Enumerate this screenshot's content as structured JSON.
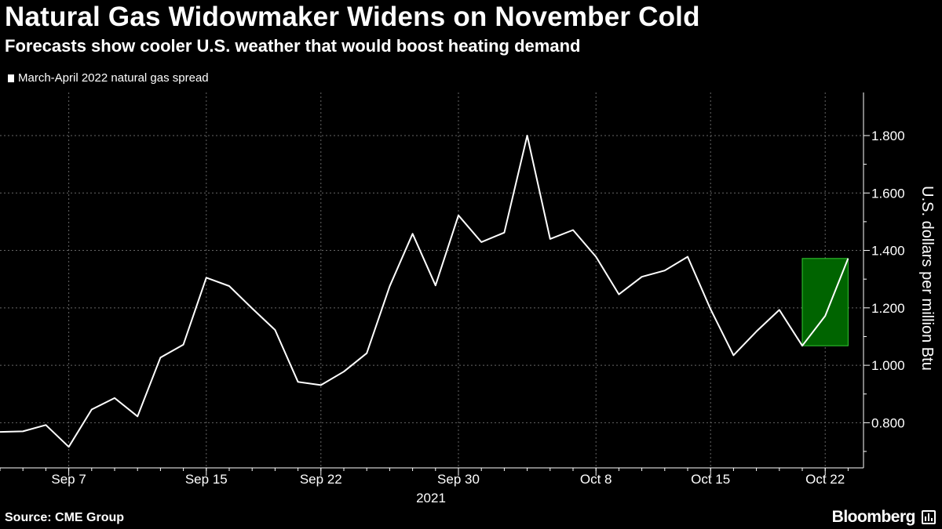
{
  "header": {
    "title": "Natural Gas Widowmaker Widens on November Cold",
    "subtitle": "Forecasts show cooler U.S. weather that would boost heating demand"
  },
  "footer": {
    "source": "Source: CME Group",
    "brand": "Bloomberg"
  },
  "colors": {
    "background": "#000000",
    "line": "#ffffff",
    "highlight_fill": "#006400",
    "highlight_stroke": "#33cc33",
    "grid": "#666666"
  },
  "chart_data": {
    "type": "line",
    "ylabel": "U.S. dollars per million Btu",
    "ylim": [
      0.64,
      1.9
    ],
    "y_ticks": [
      "0.800",
      "1.000",
      "1.200",
      "1.400",
      "1.600",
      "1.800"
    ],
    "y_tick_values": [
      0.8,
      1.0,
      1.2,
      1.4,
      1.6,
      1.8
    ],
    "x_tick_labels": [
      "Sep 7",
      "Sep 15",
      "Sep 22",
      "Sep 30",
      "Oct 8",
      "Oct 15",
      "Oct 22"
    ],
    "year_label": "2021",
    "grid": true,
    "legend_position": "top-left",
    "highlight": {
      "from_index": 35,
      "to_index": 37,
      "description_color": "green"
    },
    "series": [
      {
        "name": "March-April 2022 natural gas spread",
        "x": [
          "Sep 1",
          "Sep 2",
          "Sep 3",
          "Sep 7",
          "Sep 8",
          "Sep 9",
          "Sep 10",
          "Sep 13",
          "Sep 14",
          "Sep 15",
          "Sep 16",
          "Sep 17",
          "Sep 20",
          "Sep 21",
          "Sep 22",
          "Sep 23",
          "Sep 24",
          "Sep 27",
          "Sep 28",
          "Sep 29",
          "Sep 30",
          "Oct 1",
          "Oct 4",
          "Oct 5",
          "Oct 6",
          "Oct 7",
          "Oct 8",
          "Oct 11",
          "Oct 12",
          "Oct 13",
          "Oct 14",
          "Oct 15",
          "Oct 18",
          "Oct 19",
          "Oct 20",
          "Oct 21",
          "Oct 22",
          "Oct 25"
        ],
        "values": [
          0.768,
          0.77,
          0.792,
          0.716,
          0.846,
          0.886,
          0.822,
          1.027,
          1.072,
          1.305,
          1.276,
          1.198,
          1.123,
          0.942,
          0.931,
          0.978,
          1.042,
          1.275,
          1.458,
          1.278,
          1.522,
          1.429,
          1.462,
          1.8,
          1.44,
          1.471,
          1.378,
          1.247,
          1.308,
          1.33,
          1.378,
          1.195,
          1.035,
          1.118,
          1.193,
          1.068,
          1.172,
          1.372
        ]
      }
    ]
  }
}
